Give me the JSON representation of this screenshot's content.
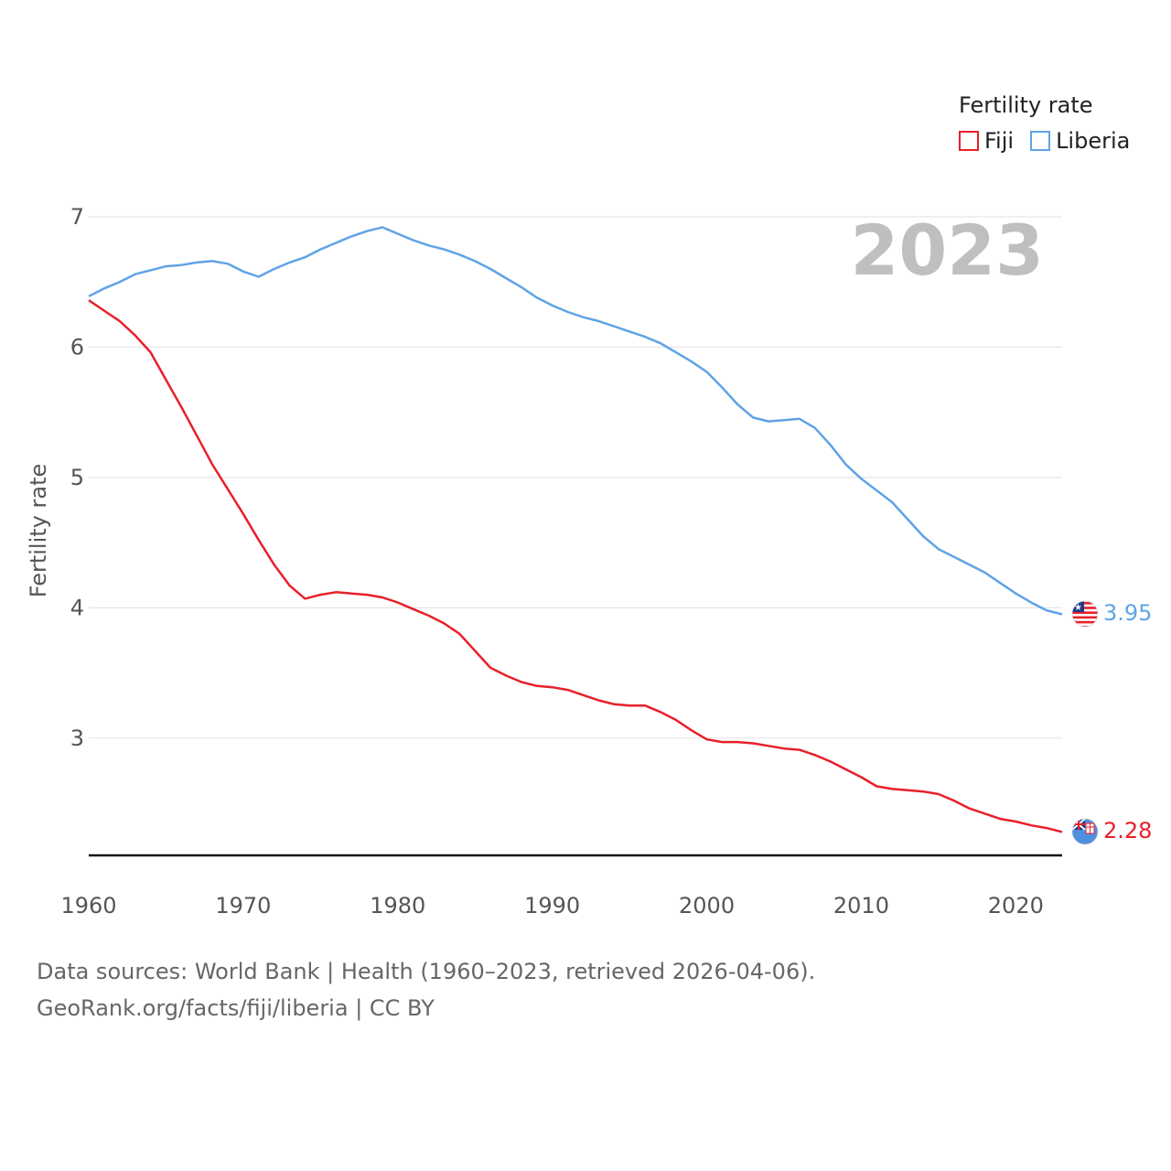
{
  "chart_data": {
    "type": "line",
    "title": "",
    "xlabel": "",
    "ylabel": "Fertility rate",
    "xlim": [
      1960,
      2023
    ],
    "ylim": [
      2.1,
      7.0
    ],
    "y_ticks": [
      3,
      4,
      5,
      6,
      7
    ],
    "x_ticks": [
      1960,
      1970,
      1980,
      1990,
      2000,
      2010,
      2020
    ],
    "year_label": "2023",
    "legend": {
      "title": "Fertility rate",
      "position": "top-right"
    },
    "series": [
      {
        "name": "Fiji",
        "color": "#e8202a",
        "end_label": "2.28",
        "x": [
          1960,
          1961,
          1962,
          1963,
          1964,
          1965,
          1966,
          1967,
          1968,
          1969,
          1970,
          1971,
          1972,
          1973,
          1974,
          1975,
          1976,
          1977,
          1978,
          1979,
          1980,
          1981,
          1982,
          1983,
          1984,
          1985,
          1986,
          1987,
          1988,
          1989,
          1990,
          1991,
          1992,
          1993,
          1994,
          1995,
          1996,
          1997,
          1998,
          1999,
          2000,
          2001,
          2002,
          2003,
          2004,
          2005,
          2006,
          2007,
          2008,
          2009,
          2010,
          2011,
          2012,
          2013,
          2014,
          2015,
          2016,
          2017,
          2018,
          2019,
          2020,
          2021,
          2022,
          2023
        ],
        "values": [
          6.36,
          6.28,
          6.2,
          6.09,
          5.96,
          5.75,
          5.54,
          5.32,
          5.1,
          4.91,
          4.72,
          4.52,
          4.33,
          4.17,
          4.07,
          4.1,
          4.12,
          4.11,
          4.1,
          4.08,
          4.04,
          3.99,
          3.94,
          3.88,
          3.8,
          3.67,
          3.54,
          3.48,
          3.43,
          3.4,
          3.39,
          3.37,
          3.33,
          3.29,
          3.26,
          3.25,
          3.25,
          3.2,
          3.14,
          3.06,
          2.99,
          2.97,
          2.97,
          2.96,
          2.94,
          2.92,
          2.91,
          2.87,
          2.82,
          2.76,
          2.7,
          2.63,
          2.61,
          2.6,
          2.59,
          2.57,
          2.52,
          2.46,
          2.42,
          2.38,
          2.36,
          2.33,
          2.31,
          2.28
        ]
      },
      {
        "name": "Liberia",
        "color": "#5fa3e6",
        "end_label": "3.95",
        "x": [
          1960,
          1961,
          1962,
          1963,
          1964,
          1965,
          1966,
          1967,
          1968,
          1969,
          1970,
          1971,
          1972,
          1973,
          1974,
          1975,
          1976,
          1977,
          1978,
          1979,
          1980,
          1981,
          1982,
          1983,
          1984,
          1985,
          1986,
          1987,
          1988,
          1989,
          1990,
          1991,
          1992,
          1993,
          1994,
          1995,
          1996,
          1997,
          1998,
          1999,
          2000,
          2001,
          2002,
          2003,
          2004,
          2005,
          2006,
          2007,
          2008,
          2009,
          2010,
          2011,
          2012,
          2013,
          2014,
          2015,
          2016,
          2017,
          2018,
          2019,
          2020,
          2021,
          2022,
          2023
        ],
        "values": [
          6.39,
          6.45,
          6.5,
          6.56,
          6.59,
          6.62,
          6.63,
          6.65,
          6.66,
          6.64,
          6.58,
          6.54,
          6.6,
          6.65,
          6.69,
          6.75,
          6.8,
          6.85,
          6.89,
          6.92,
          6.87,
          6.82,
          6.78,
          6.75,
          6.71,
          6.66,
          6.6,
          6.53,
          6.46,
          6.38,
          6.32,
          6.27,
          6.23,
          6.2,
          6.16,
          6.12,
          6.08,
          6.03,
          5.96,
          5.89,
          5.81,
          5.69,
          5.56,
          5.46,
          5.43,
          5.44,
          5.45,
          5.38,
          5.25,
          5.1,
          4.99,
          4.9,
          4.81,
          4.68,
          4.55,
          4.45,
          4.39,
          4.33,
          4.27,
          4.19,
          4.11,
          4.04,
          3.98,
          3.95
        ]
      }
    ]
  },
  "footer": {
    "line1": "Data sources: World Bank | Health (1960–2023, retrieved 2026-04-06).",
    "line2": "GeoRank.org/facts/fiji/liberia | CC BY"
  },
  "colors": {
    "grid": "#e6e6e6",
    "axis": "#111111",
    "fiji": "#e8202a",
    "liberia": "#5fa3e6"
  },
  "icons": [
    "liberia-flag-icon",
    "fiji-flag-icon"
  ]
}
